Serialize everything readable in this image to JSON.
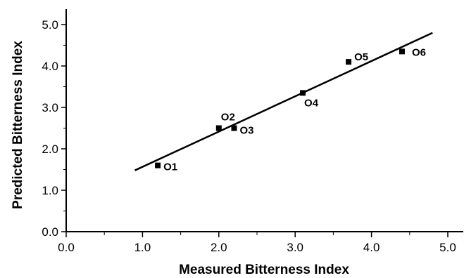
{
  "chart_data": {
    "type": "scatter",
    "title": "",
    "xlabel": "Measured Bitterness Index",
    "ylabel": "Predicted Bitterness Index",
    "xlim": [
      0,
      5
    ],
    "ylim": [
      0,
      5.3
    ],
    "x_ticks": [
      "0.0",
      "1.0",
      "2.0",
      "3.0",
      "4.0",
      "5.0"
    ],
    "y_ticks": [
      "0.0",
      "1.0",
      "2.0",
      "3.0",
      "4.0",
      "5.0"
    ],
    "grid": false,
    "legend": "none",
    "points": [
      {
        "label": "O1",
        "x": 1.2,
        "y": 1.6
      },
      {
        "label": "O2",
        "x": 2.0,
        "y": 2.5
      },
      {
        "label": "O3",
        "x": 2.2,
        "y": 2.5
      },
      {
        "label": "O4",
        "x": 3.1,
        "y": 3.35
      },
      {
        "label": "O5",
        "x": 3.7,
        "y": 4.1
      },
      {
        "label": "O6",
        "x": 4.4,
        "y": 4.35
      }
    ],
    "fit_line": {
      "x": [
        0.9,
        4.8
      ],
      "y": [
        1.48,
        4.8
      ]
    },
    "colors": {
      "marks": "#000000",
      "background": "#ffffff"
    }
  }
}
